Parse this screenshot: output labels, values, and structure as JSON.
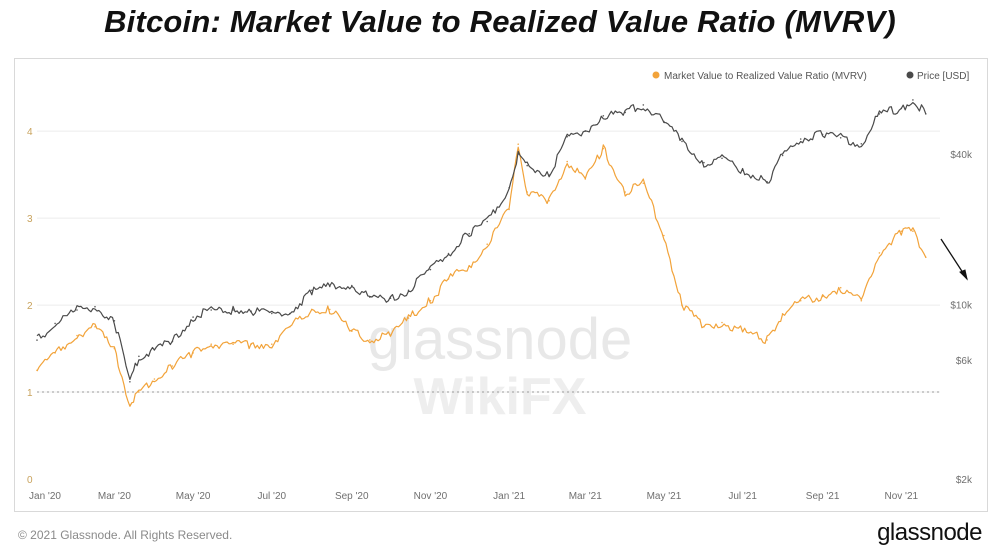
{
  "title": "Bitcoin: Market Value to Realized Value Ratio (MVRV)",
  "footer": {
    "copyright": "© 2021 Glassnode. All Rights Reserved.",
    "logo": "glassnode"
  },
  "watermarks": {
    "primary": "glassnode",
    "secondary": "WikiFX"
  },
  "colors": {
    "mvrv": "#f2a33a",
    "price": "#4a4a4a",
    "grid": "#ececec",
    "left_axis": "#c8a25c",
    "right_axis": "#6f6f6f"
  },
  "chart_data": {
    "type": "line",
    "grid": true,
    "legend_position": "top-right",
    "x_ticks": [
      "Jan '20",
      "Mar '20",
      "May '20",
      "Jul '20",
      "Sep '20",
      "Nov '20",
      "Jan '21",
      "Mar '21",
      "May '21",
      "Jul '21",
      "Sep '21",
      "Nov '21"
    ],
    "x": [
      "2020-01-01",
      "2020-01-15",
      "2020-02-01",
      "2020-02-15",
      "2020-03-01",
      "2020-03-13",
      "2020-03-20",
      "2020-04-01",
      "2020-04-15",
      "2020-05-01",
      "2020-05-15",
      "2020-06-01",
      "2020-06-15",
      "2020-07-01",
      "2020-07-15",
      "2020-08-01",
      "2020-08-15",
      "2020-09-01",
      "2020-09-15",
      "2020-10-01",
      "2020-10-15",
      "2020-11-01",
      "2020-11-15",
      "2020-12-01",
      "2020-12-15",
      "2021-01-01",
      "2021-01-08",
      "2021-01-15",
      "2021-02-01",
      "2021-02-15",
      "2021-03-01",
      "2021-03-15",
      "2021-04-01",
      "2021-04-15",
      "2021-05-01",
      "2021-05-15",
      "2021-06-01",
      "2021-06-15",
      "2021-07-01",
      "2021-07-20",
      "2021-08-01",
      "2021-08-15",
      "2021-09-01",
      "2021-09-15",
      "2021-10-01",
      "2021-10-15",
      "2021-11-01",
      "2021-11-10",
      "2021-11-20"
    ],
    "y_left": {
      "ticks": [
        "0",
        "1",
        "2",
        "3",
        "4"
      ],
      "range": [
        0,
        4.6
      ]
    },
    "y_right": {
      "ticks": [
        "$2k",
        "$6k",
        "$10k",
        "$40k"
      ],
      "tick_values": [
        2000,
        6000,
        10000,
        40000
      ],
      "scale": "log",
      "range": [
        2000,
        80000
      ]
    },
    "reference_line": {
      "axis": "left",
      "value": 1,
      "style": "dotted"
    },
    "series": [
      {
        "name": "Market Value to Realized Value Ratio (MVRV)",
        "axis": "left",
        "values": [
          1.25,
          1.45,
          1.65,
          1.75,
          1.5,
          0.85,
          1.0,
          1.15,
          1.3,
          1.45,
          1.55,
          1.55,
          1.55,
          1.55,
          1.75,
          1.95,
          1.95,
          1.7,
          1.6,
          1.65,
          1.85,
          2.05,
          2.3,
          2.45,
          2.7,
          3.1,
          3.85,
          3.3,
          3.2,
          3.65,
          3.45,
          3.8,
          3.3,
          3.4,
          2.8,
          2.0,
          1.75,
          1.8,
          1.7,
          1.6,
          1.9,
          2.05,
          2.1,
          2.2,
          2.05,
          2.6,
          2.85,
          2.85,
          2.55
        ]
      },
      {
        "name": "Price [USD]",
        "axis": "right",
        "values": [
          7200,
          8400,
          9500,
          9800,
          8600,
          4900,
          6200,
          6600,
          7100,
          8900,
          9500,
          9500,
          9400,
          9200,
          9200,
          11400,
          11800,
          11900,
          10700,
          10600,
          11400,
          13800,
          16000,
          19200,
          21500,
          29300,
          40000,
          36000,
          33000,
          47000,
          49500,
          57000,
          58800,
          63000,
          54000,
          45000,
          37000,
          38500,
          34500,
          31000,
          39500,
          46000,
          48000,
          46500,
          44000,
          58000,
          61000,
          66000,
          58000
        ]
      }
    ]
  }
}
